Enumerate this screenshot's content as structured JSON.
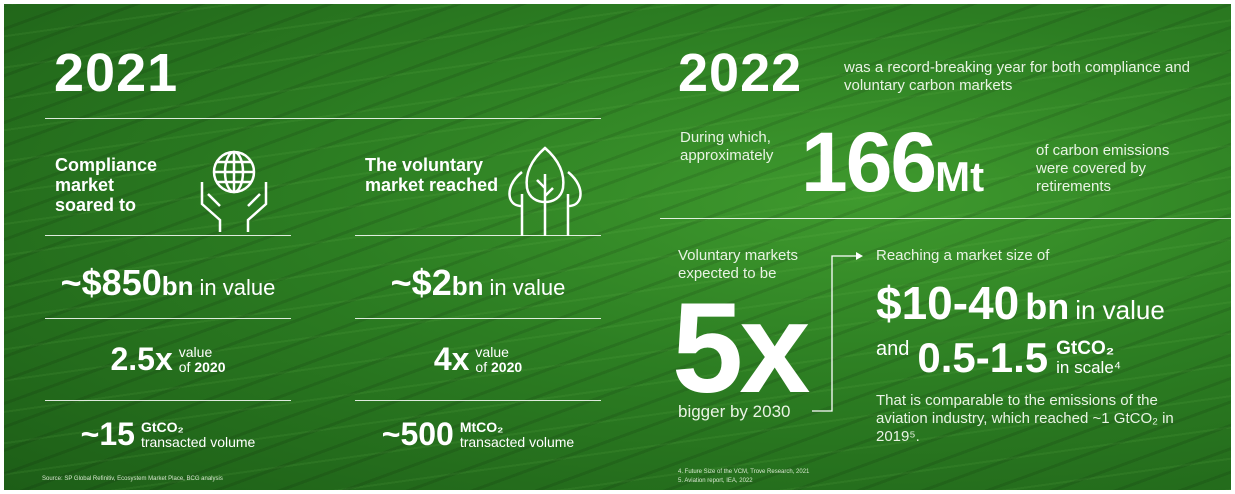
{
  "left": {
    "year": "2021",
    "compliance": {
      "heading": "Compliance market soared to",
      "value": "~$850",
      "unit": "bn",
      "value_note": "in value",
      "multiple": "2.5x",
      "multiple_note": "value",
      "multiple_of": "of",
      "multiple_year": "2020",
      "volume": "~15",
      "volume_unit": "GtCO₂",
      "volume_note": "transacted volume"
    },
    "voluntary": {
      "heading": "The voluntary market reached",
      "value": "~$2",
      "unit": "bn",
      "value_note": "in value",
      "multiple": "4x",
      "multiple_note": "value",
      "multiple_of": "of",
      "multiple_year": "2020",
      "volume": "~500",
      "volume_unit": "MtCO₂",
      "volume_note": "transacted volume"
    },
    "source": "Source: SP Global Refinitiv, Ecosystem Market Place, BCG analysis"
  },
  "right": {
    "year": "2022",
    "year_note": "was a record-breaking year for both compliance and voluntary carbon markets",
    "intro": "During which, approximately",
    "amount": "166",
    "amount_unit": "Mt",
    "amount_note": "of carbon emissions were covered by retirements",
    "forecast_intro": "Voluntary markets expected to be",
    "forecast_multiple": "5x",
    "forecast_note": "bigger by 2030",
    "size_intro": "Reaching a market size of",
    "size_value": "$10-40",
    "size_unit": "bn",
    "size_note": "in value",
    "scale_and": "and",
    "scale_value": "0.5-1.5",
    "scale_unit": "GtCO₂",
    "scale_note": "in scale⁴",
    "comparison": "That is comparable to the emissions of the aviation industry, which reached ~1 GtCO₂ in 2019⁵.",
    "footnotes": [
      "4.  Future Size of the VCM, Trove Research, 2021",
      "5.  Aviation report, IEA, 2022"
    ]
  }
}
